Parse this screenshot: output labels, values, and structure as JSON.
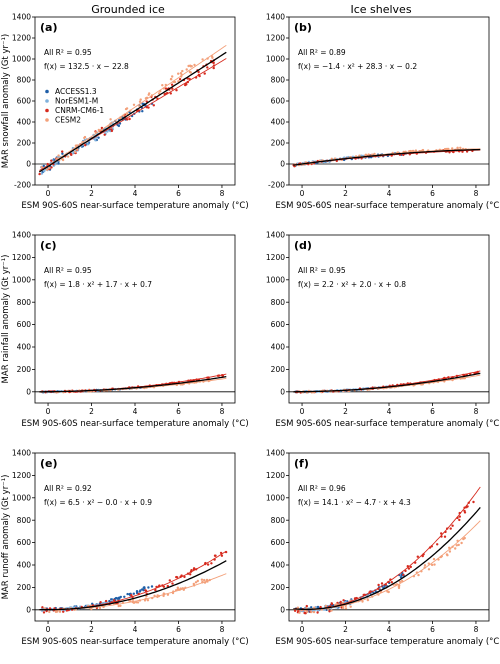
{
  "column_titles": [
    "Grounded ice",
    "Ice shelves"
  ],
  "xlabel": "ESM 90S-60S near-surface temperature anomaly (°C)",
  "legend": {
    "placement": "panel (a), left",
    "entries": [
      {
        "name": "ACCESS1.3",
        "color": "#1f5fa8"
      },
      {
        "name": "NorESM1-M",
        "color": "#7fb1dc"
      },
      {
        "name": "CNRM-CM6-1",
        "color": "#d62a1e"
      },
      {
        "name": "CESM2",
        "color": "#f3a07a"
      }
    ]
  },
  "chart_data": [
    {
      "type": "scatter",
      "panel": "(a)",
      "ylabel": "MAR snowfall anomaly (Gt yr⁻¹)",
      "xlim": [
        -0.6,
        8.6
      ],
      "ylim": [
        -200,
        1400
      ],
      "xticks": [
        0,
        2,
        4,
        6,
        8
      ],
      "yticks": [
        -200,
        0,
        200,
        400,
        600,
        800,
        1000,
        1200,
        1400
      ],
      "r2_text": "All R² = 0.95",
      "fit_text": "f(x) = 132.5 · x − 22.8",
      "fit": {
        "a": 0,
        "b": 132.5,
        "c": -22.8
      },
      "series": [
        {
          "name": "ACCESS1.3",
          "color": "#1f5fa8",
          "x_range": [
            -0.3,
            4.8
          ],
          "a": 0,
          "b": 130,
          "c": -25,
          "noise": 40
        },
        {
          "name": "NorESM1-M",
          "color": "#7fb1dc",
          "x_range": [
            -0.3,
            3.0
          ],
          "a": 0,
          "b": 128,
          "c": -20,
          "noise": 35
        },
        {
          "name": "CNRM-CM6-1",
          "color": "#d62a1e",
          "x_range": [
            -0.4,
            8.0
          ],
          "a": 0,
          "b": 127,
          "c": -10,
          "noise": 50
        },
        {
          "name": "CESM2",
          "color": "#f3a07a",
          "x_range": [
            -0.3,
            7.6
          ],
          "a": 0,
          "b": 142,
          "c": -20,
          "noise": 45
        }
      ],
      "model_fits": [
        {
          "color": "#d62a1e",
          "a": 0,
          "b": 124,
          "c": -12
        },
        {
          "color": "#f3a07a",
          "a": 0,
          "b": 140,
          "c": -18
        }
      ]
    },
    {
      "type": "scatter",
      "panel": "(b)",
      "ylabel": "",
      "xlim": [
        -0.6,
        8.6
      ],
      "ylim": [
        -200,
        1400
      ],
      "xticks": [
        0,
        2,
        4,
        6,
        8
      ],
      "yticks": [
        -200,
        0,
        200,
        400,
        600,
        800,
        1000,
        1200,
        1400
      ],
      "r2_text": "All R² = 0.89",
      "fit_text": "f(x) = −1.4 · x² + 28.3 · x − 0.2",
      "fit": {
        "a": -1.4,
        "b": 28.3,
        "c": -0.2
      },
      "series": [
        {
          "name": "ACCESS1.3",
          "color": "#1f5fa8",
          "x_range": [
            -0.3,
            4.8
          ],
          "a": -1.5,
          "b": 28,
          "c": 0,
          "noise": 10
        },
        {
          "name": "NorESM1-M",
          "color": "#7fb1dc",
          "x_range": [
            -0.3,
            3.0
          ],
          "a": -1.5,
          "b": 30,
          "c": 0,
          "noise": 10
        },
        {
          "name": "CNRM-CM6-1",
          "color": "#d62a1e",
          "x_range": [
            -0.4,
            8.0
          ],
          "a": -1.3,
          "b": 27,
          "c": 0,
          "noise": 12
        },
        {
          "name": "CESM2",
          "color": "#f3a07a",
          "x_range": [
            -0.3,
            7.6
          ],
          "a": -1.4,
          "b": 30,
          "c": 0,
          "noise": 12
        }
      ],
      "model_fits": [
        {
          "color": "#d62a1e",
          "a": -1.2,
          "b": 26,
          "c": 0
        },
        {
          "color": "#f3a07a",
          "a": -1.5,
          "b": 30,
          "c": 0
        }
      ]
    },
    {
      "type": "scatter",
      "panel": "(c)",
      "ylabel": "MAR rainfall anomaly (Gt yr⁻¹)",
      "xlim": [
        -0.6,
        8.6
      ],
      "ylim": [
        -100,
        1400
      ],
      "xticks": [
        0,
        2,
        4,
        6,
        8
      ],
      "yticks": [
        0,
        200,
        400,
        600,
        800,
        1000,
        1200,
        1400
      ],
      "r2_text": "All R² = 0.95",
      "fit_text": "f(x) = 1.8 · x² + 1.7 · x + 0.7",
      "fit": {
        "a": 1.8,
        "b": 1.7,
        "c": 0.7
      },
      "series": [
        {
          "name": "ACCESS1.3",
          "color": "#1f5fa8",
          "x_range": [
            -0.3,
            4.8
          ],
          "a": 1.8,
          "b": 1.5,
          "c": 0,
          "noise": 4
        },
        {
          "name": "NorESM1-M",
          "color": "#7fb1dc",
          "x_range": [
            -0.3,
            3.0
          ],
          "a": 1.8,
          "b": 1.5,
          "c": 0,
          "noise": 4
        },
        {
          "name": "CNRM-CM6-1",
          "color": "#d62a1e",
          "x_range": [
            -0.4,
            8.2
          ],
          "a": 2.0,
          "b": 2.0,
          "c": 0,
          "noise": 6
        },
        {
          "name": "CESM2",
          "color": "#f3a07a",
          "x_range": [
            -0.3,
            7.6
          ],
          "a": 1.6,
          "b": 1.5,
          "c": 0,
          "noise": 6
        }
      ],
      "model_fits": [
        {
          "color": "#d62a1e",
          "a": 2.1,
          "b": 2.0,
          "c": 0
        },
        {
          "color": "#f3a07a",
          "a": 1.6,
          "b": 1.5,
          "c": 0
        }
      ]
    },
    {
      "type": "scatter",
      "panel": "(d)",
      "ylabel": "",
      "xlim": [
        -0.6,
        8.6
      ],
      "ylim": [
        -100,
        1400
      ],
      "xticks": [
        0,
        2,
        4,
        6,
        8
      ],
      "yticks": [
        0,
        200,
        400,
        600,
        800,
        1000,
        1200,
        1400
      ],
      "r2_text": "All R² = 0.95",
      "fit_text": "f(x) = 2.2 · x² + 2.0 · x + 0.8",
      "fit": {
        "a": 2.2,
        "b": 2.0,
        "c": 0.8
      },
      "series": [
        {
          "name": "ACCESS1.3",
          "color": "#1f5fa8",
          "x_range": [
            -0.3,
            4.8
          ],
          "a": 2.2,
          "b": 2.0,
          "c": 0,
          "noise": 5
        },
        {
          "name": "NorESM1-M",
          "color": "#7fb1dc",
          "x_range": [
            -0.3,
            3.0
          ],
          "a": 2.2,
          "b": 2.0,
          "c": 0,
          "noise": 5
        },
        {
          "name": "CNRM-CM6-1",
          "color": "#d62a1e",
          "x_range": [
            -0.4,
            8.2
          ],
          "a": 2.4,
          "b": 2.2,
          "c": 0,
          "noise": 7
        },
        {
          "name": "CESM2",
          "color": "#f3a07a",
          "x_range": [
            -0.3,
            7.6
          ],
          "a": 2.0,
          "b": 1.8,
          "c": 0,
          "noise": 7
        }
      ],
      "model_fits": [
        {
          "color": "#d62a1e",
          "a": 2.5,
          "b": 2.2,
          "c": 0
        },
        {
          "color": "#f3a07a",
          "a": 2.0,
          "b": 1.8,
          "c": 0
        }
      ]
    },
    {
      "type": "scatter",
      "panel": "(e)",
      "ylabel": "MAR runoff anomaly (Gt yr⁻¹)",
      "xlim": [
        -0.6,
        8.6
      ],
      "ylim": [
        -100,
        1400
      ],
      "xticks": [
        0,
        2,
        4,
        6,
        8
      ],
      "yticks": [
        0,
        200,
        400,
        600,
        800,
        1000,
        1200,
        1400
      ],
      "r2_text": "All R² = 0.92",
      "fit_text": "f(x) = 6.5 · x² − 0.0 · x + 0.9",
      "fit": {
        "a": 6.5,
        "b": 0.0,
        "c": 0.9
      },
      "series": [
        {
          "name": "ACCESS1.3",
          "color": "#1f5fa8",
          "x_range": [
            -0.3,
            4.8
          ],
          "a": 9.5,
          "b": 0,
          "c": 0,
          "noise": 15
        },
        {
          "name": "NorESM1-M",
          "color": "#7fb1dc",
          "x_range": [
            -0.3,
            3.0
          ],
          "a": 8.5,
          "b": 0,
          "c": 0,
          "noise": 10
        },
        {
          "name": "CNRM-CM6-1",
          "color": "#d62a1e",
          "x_range": [
            -0.4,
            8.2
          ],
          "a": 7.8,
          "b": 0,
          "c": 0,
          "noise": 25
        },
        {
          "name": "CESM2",
          "color": "#f3a07a",
          "x_range": [
            -0.3,
            7.6
          ],
          "a": 5.0,
          "b": 0,
          "c": 0,
          "noise": 20
        }
      ],
      "model_fits": [
        {
          "color": "#d62a1e",
          "a": 7.8,
          "b": 0,
          "c": 0
        },
        {
          "color": "#f3a07a",
          "a": 4.8,
          "b": 0,
          "c": 0
        }
      ]
    },
    {
      "type": "scatter",
      "panel": "(f)",
      "ylabel": "",
      "xlim": [
        -0.6,
        8.6
      ],
      "ylim": [
        -100,
        1400
      ],
      "xticks": [
        0,
        2,
        4,
        6,
        8
      ],
      "yticks": [
        0,
        200,
        400,
        600,
        800,
        1000,
        1200,
        1400
      ],
      "r2_text": "All R² = 0.96",
      "fit_text": "f(x) = 14.1 · x² − 4.7 · x + 4.3",
      "fit": {
        "a": 14.1,
        "b": -4.7,
        "c": 4.3
      },
      "series": [
        {
          "name": "ACCESS1.3",
          "color": "#1f5fa8",
          "x_range": [
            -0.3,
            4.8
          ],
          "a": 14.5,
          "b": 0,
          "c": 0,
          "noise": 20
        },
        {
          "name": "NorESM1-M",
          "color": "#7fb1dc",
          "x_range": [
            -0.3,
            3.0
          ],
          "a": 14.0,
          "b": 0,
          "c": 0,
          "noise": 15
        },
        {
          "name": "CNRM-CM6-1",
          "color": "#d62a1e",
          "x_range": [
            -0.4,
            8.2
          ],
          "a": 16.5,
          "b": -4,
          "c": 0,
          "noise": 35
        },
        {
          "name": "CESM2",
          "color": "#f3a07a",
          "x_range": [
            -0.3,
            7.6
          ],
          "a": 12.0,
          "b": -3,
          "c": 0,
          "noise": 30
        }
      ],
      "model_fits": [
        {
          "color": "#d62a1e",
          "a": 16.8,
          "b": -4,
          "c": 0
        },
        {
          "color": "#f3a07a",
          "a": 12.2,
          "b": -3,
          "c": 0
        }
      ]
    }
  ]
}
